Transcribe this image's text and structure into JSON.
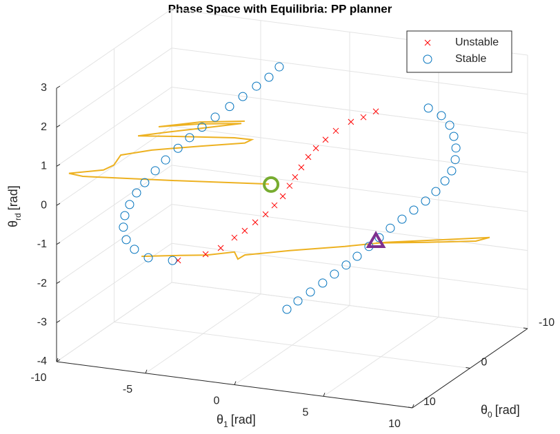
{
  "chart_data": {
    "type": "scatter3d",
    "title": "Phase Space with Equilibria: PP planner",
    "x_label": {
      "symbol": "θ",
      "sub": "1",
      "unit": "[rad]"
    },
    "y_label": {
      "symbol": "θ",
      "sub": "0",
      "unit": "[rad]"
    },
    "z_label": {
      "symbol": "θ",
      "sub": "rd",
      "unit": "[rad]"
    },
    "xlim": [
      -10,
      10
    ],
    "xticks": [
      -10,
      -5,
      0,
      5,
      10
    ],
    "ylim": [
      -10,
      10
    ],
    "yticks": [
      -10,
      0,
      10
    ],
    "zlim": [
      -4,
      3
    ],
    "zticks": [
      -4,
      -3,
      -2,
      -1,
      0,
      1,
      2,
      3
    ],
    "grid": true,
    "legend": "top-right",
    "series": [
      {
        "name": "Unstable",
        "color": "#FF0000",
        "marker": "x",
        "x": [
          4.71,
          4.01,
          3.31,
          2.46,
          1.88,
          1.34,
          0.91,
          0.52,
          0.17,
          -0.14,
          -0.52,
          -0.99,
          -1.49,
          -2.07,
          -2.66,
          -3.24,
          -4.01,
          -4.86,
          -6.41
        ],
        "y": [
          0,
          0,
          0,
          0,
          0,
          0,
          0,
          0,
          0,
          0,
          0,
          0,
          0,
          0,
          0,
          0,
          0,
          0,
          0
        ],
        "z": [
          2.26,
          2.07,
          1.91,
          1.63,
          1.37,
          1.12,
          0.87,
          0.58,
          0.31,
          0.07,
          -0.22,
          -0.48,
          -0.74,
          -0.98,
          -1.23,
          -1.44,
          -1.75,
          -1.96,
          -2.21
        ]
      },
      {
        "name": "Stable",
        "color": "#0072BD",
        "marker": "o",
        "x": [
          -0.72,
          -1.3,
          -2.0,
          -2.77,
          -3.51,
          -4.32,
          -5.06,
          -5.76,
          -6.41,
          -7.11,
          -7.69,
          -8.28,
          -8.74,
          -9.13,
          -9.4,
          -9.48,
          -9.32,
          -8.86,
          -8.08,
          -6.72,
          7.66,
          8.39,
          8.86,
          9.09,
          9.21,
          9.17,
          8.97,
          8.59,
          8.08,
          7.5,
          6.84,
          6.18,
          5.52,
          4.9,
          4.32,
          3.66,
          3.04,
          2.38,
          1.72,
          1.03,
          0.33,
          -0.29
        ],
        "y": [
          0,
          0,
          0,
          0,
          0,
          0,
          0,
          0,
          0,
          0,
          0,
          0,
          0,
          0,
          0,
          0,
          0,
          0,
          0,
          0,
          0,
          0,
          0,
          0,
          0,
          0,
          0,
          0,
          0,
          0,
          0,
          0,
          0,
          0,
          0,
          0,
          0,
          0,
          0,
          0,
          0,
          0
        ],
        "z": [
          3.08,
          2.78,
          2.51,
          2.2,
          1.9,
          1.58,
          1.28,
          0.97,
          0.66,
          0.32,
          0.01,
          -0.33,
          -0.62,
          -0.94,
          -1.24,
          -1.54,
          -1.85,
          -2.07,
          -2.24,
          -2.23,
          2.52,
          2.37,
          2.15,
          1.88,
          1.59,
          1.29,
          0.99,
          0.71,
          0.41,
          0.13,
          -0.14,
          -0.41,
          -0.68,
          -0.96,
          -1.22,
          -1.51,
          -1.77,
          -2.04,
          -2.31,
          -2.58,
          -2.85,
          -3.1
        ]
      },
      {
        "color": "#EDB120",
        "marker": "line",
        "x": [
          1.29,
          -4.14,
          -9.17,
          -9.95,
          -8.01,
          -7.43,
          -7.04,
          -5.3,
          -2.59,
          -0.07,
          0.32,
          -0.65,
          -3.75,
          -6.07,
          -4.52,
          -2.2,
          -0.26,
          -2.59,
          -4.91,
          -2.59,
          -0.07,
          null,
          -9.76,
          -7.63,
          -6.08,
          -4.53,
          -4.34,
          -3.95,
          -1.43,
          1.67,
          3.99,
          7.09,
          9.81,
          9.03,
          6.32,
          3.41
        ],
        "y": [
          8,
          8,
          8,
          8,
          8,
          8,
          8,
          8,
          8,
          8,
          8,
          8,
          8,
          8,
          8,
          8,
          8,
          8,
          8,
          8,
          8,
          null,
          -4,
          -4,
          -4,
          -4,
          -4,
          -4,
          -4,
          -4,
          -4,
          -4,
          -4,
          -4,
          -4,
          -4
        ],
        "z": [
          1.01,
          0.78,
          0.59,
          0.62,
          0.82,
          0.98,
          1.26,
          1.49,
          1.75,
          1.98,
          2.09,
          2.08,
          1.93,
          1.81,
          1.99,
          2.25,
          2.47,
          2.32,
          2.11,
          2.37,
          2.54,
          null,
          -2.71,
          -2.56,
          -2.46,
          -2.29,
          -2.46,
          -2.33,
          -2.07,
          -1.78,
          -1.54,
          -1.29,
          -1.07,
          -1.21,
          -1.4,
          -1.59
        ]
      }
    ],
    "markers": [
      {
        "shape": "circle",
        "color": "#77AC30",
        "x": -1.18,
        "y": 0,
        "z": 0.04
      },
      {
        "shape": "triangle",
        "color": "#7E2F8E",
        "x": 4.71,
        "y": 0,
        "z": -1.06
      }
    ]
  }
}
